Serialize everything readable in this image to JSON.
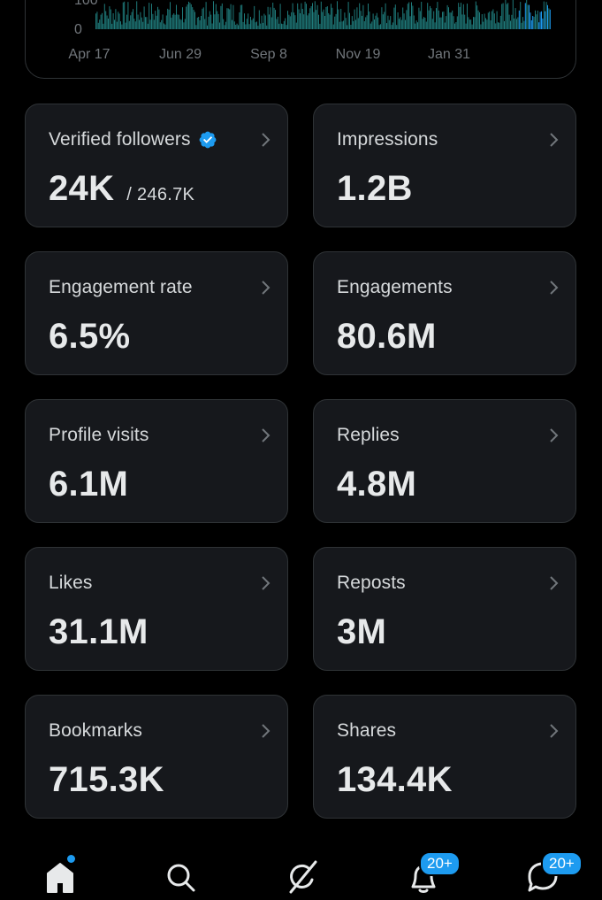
{
  "chart": {
    "y_ticks": [
      "0"
    ],
    "y_tick_partial": "100",
    "x_ticks": [
      "Apr 17",
      "Jun 29",
      "Sep 8",
      "Nov 19",
      "Jan 31"
    ],
    "bar_color": "#1f7a7a",
    "accent_color": "#1d9bf0"
  },
  "metrics": [
    {
      "label": "Verified followers",
      "value": "24K",
      "sub": "/ 246.7K",
      "verified": true
    },
    {
      "label": "Impressions",
      "value": "1.2B"
    },
    {
      "label": "Engagement rate",
      "value": "6.5%"
    },
    {
      "label": "Engagements",
      "value": "80.6M"
    },
    {
      "label": "Profile visits",
      "value": "6.1M"
    },
    {
      "label": "Replies",
      "value": "4.8M"
    },
    {
      "label": "Likes",
      "value": "31.1M"
    },
    {
      "label": "Reposts",
      "value": "3M"
    },
    {
      "label": "Bookmarks",
      "value": "715.3K"
    },
    {
      "label": "Shares",
      "value": "134.4K"
    }
  ],
  "nav": {
    "items": [
      {
        "icon": "home-icon",
        "active": true,
        "dot": true
      },
      {
        "icon": "search-icon"
      },
      {
        "icon": "grok-icon"
      },
      {
        "icon": "bell-icon",
        "badge": "20+"
      },
      {
        "icon": "messages-icon",
        "badge": "20+"
      }
    ]
  }
}
